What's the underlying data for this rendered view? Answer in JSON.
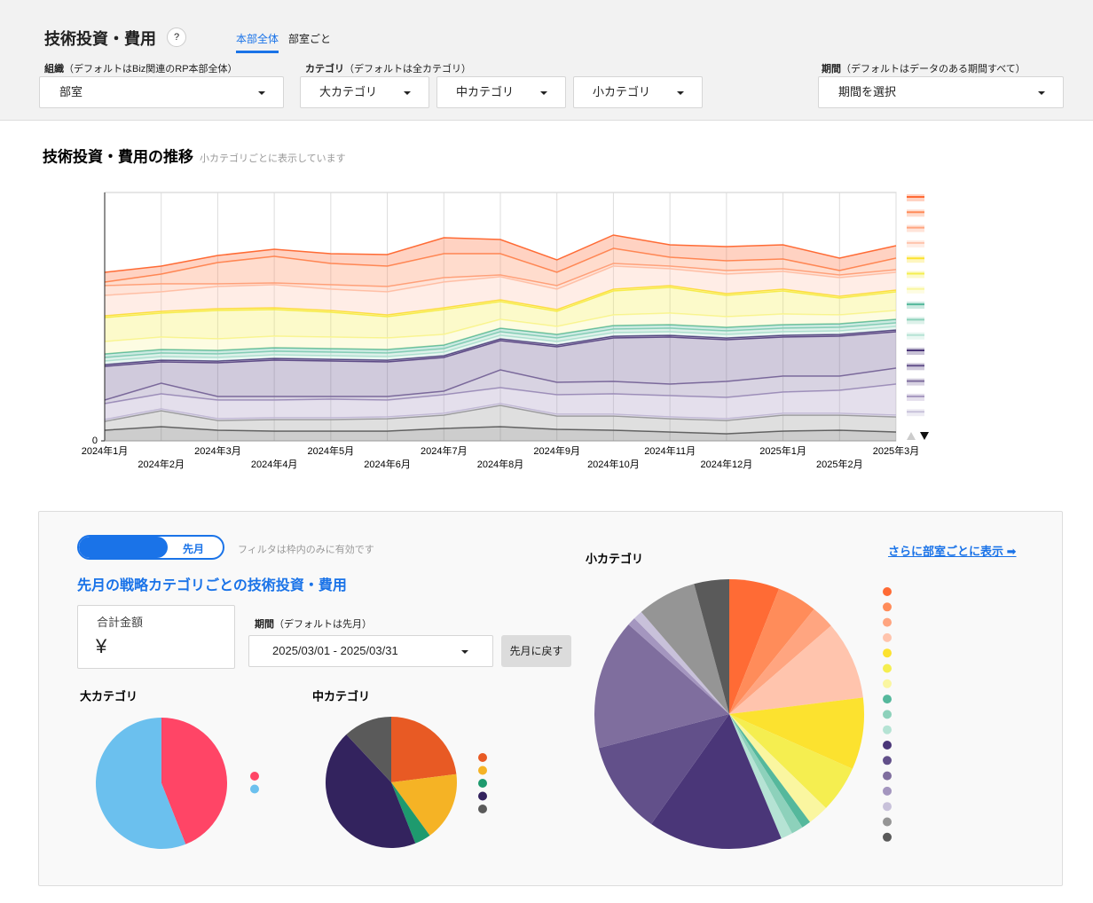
{
  "header": {
    "title": "技術投資・費用",
    "help": "?",
    "tabs": [
      "本部全体",
      "部室ごと"
    ]
  },
  "filters": [
    {
      "label": "組織",
      "note": "（デフォルトはBiz関連のRP本部全体）",
      "options": [
        "部室"
      ]
    },
    {
      "label": "カテゴリ",
      "note": "（デフォルトは全カテゴリ）",
      "options": [
        "大カテゴリ",
        "中カテゴリ",
        "小カテゴリ"
      ]
    },
    {
      "label": "期間",
      "note": "（デフォルトはデータのある期間すべて）",
      "options": [
        "期間を選択"
      ]
    }
  ],
  "panel": {
    "toggle": "先月",
    "note": "フィルタは枠内のみに有効です",
    "title": "先月の戦略カテゴリごとの技術投資・費用",
    "total_label": "合計金額",
    "total_value": "¥",
    "period_label": "期間",
    "period_note": "（デフォルトは先月）",
    "period_value": "2025/03/01 - 2025/03/31",
    "reset_button": "先月に戻す",
    "link": "さらに部室ごとに表示 ➡"
  },
  "chart_data": [
    {
      "type": "area",
      "stacked": true,
      "title": "技術投資・費用の推移",
      "subtitle": "小カテゴリごとに表示しています",
      "categories": [
        "2024年1月",
        "2024年2月",
        "2024年3月",
        "2024年4月",
        "2024年5月",
        "2024年6月",
        "2024年7月",
        "2024年8月",
        "2024年9月",
        "2024年10月",
        "2024年11月",
        "2024年12月",
        "2025年1月",
        "2025年2月",
        "2025年3月"
      ],
      "ylim": [
        0,
        280
      ],
      "yticks": [
        0
      ],
      "grid": true,
      "series": [
        {
          "color": "#ff6b35",
          "values": [
            11,
            9,
            8,
            8,
            11,
            13,
            18,
            16,
            14,
            15,
            14,
            16,
            16,
            14,
            14
          ]
        },
        {
          "color": "#ff8c5a",
          "values": [
            4,
            11,
            24,
            30,
            24,
            23,
            27,
            24,
            15,
            17,
            10,
            11,
            11,
            5,
            13
          ]
        },
        {
          "color": "#ffa580",
          "values": [
            11,
            9,
            3,
            2,
            5,
            6,
            5,
            2,
            4,
            3,
            3,
            4,
            3,
            3,
            3
          ]
        },
        {
          "color": "#ffc4ad",
          "values": [
            23,
            22,
            25,
            26,
            24,
            26,
            29,
            26,
            23,
            26,
            19,
            22,
            20,
            21,
            20
          ]
        },
        {
          "color": "#fce22f",
          "values": [
            2,
            2,
            2,
            2,
            2,
            2,
            2,
            2,
            2,
            2,
            2,
            2,
            2,
            2,
            2
          ]
        },
        {
          "color": "#f5ee50",
          "values": [
            27,
            27,
            32,
            30,
            28,
            24,
            28,
            20,
            17,
            27,
            29,
            24,
            26,
            19,
            21
          ]
        },
        {
          "color": "#faf6a0",
          "values": [
            14,
            14,
            13,
            13,
            13,
            13,
            12,
            10,
            9,
            12,
            13,
            12,
            12,
            10,
            10
          ]
        },
        {
          "color": "#55b89c",
          "values": [
            4,
            4,
            4,
            4,
            4,
            4,
            4,
            4,
            4,
            4,
            4,
            4,
            4,
            4,
            4
          ]
        },
        {
          "color": "#8dd1bb",
          "values": [
            4,
            4,
            4,
            4,
            4,
            4,
            4,
            4,
            4,
            4,
            4,
            4,
            4,
            4,
            4
          ]
        },
        {
          "color": "#b5e3d4",
          "values": [
            4,
            4,
            4,
            4,
            4,
            4,
            4,
            4,
            4,
            4,
            4,
            4,
            4,
            4,
            4
          ]
        },
        {
          "color": "#4a3678",
          "values": [
            2,
            2,
            2,
            2,
            2,
            2,
            2,
            2,
            2,
            2,
            2,
            2,
            2,
            2,
            2
          ]
        },
        {
          "color": "#62508a",
          "values": [
            38,
            24,
            38,
            41,
            40,
            39,
            38,
            33,
            40,
            49,
            53,
            47,
            44,
            45,
            41
          ]
        },
        {
          "color": "#7f6e9e",
          "values": [
            4,
            12,
            4,
            4,
            3,
            4,
            4,
            20,
            14,
            14,
            13,
            18,
            18,
            16,
            18
          ]
        },
        {
          "color": "#a496bf",
          "values": [
            18,
            17,
            21,
            20,
            21,
            19,
            21,
            18,
            22,
            23,
            24,
            24,
            24,
            26,
            35
          ]
        },
        {
          "color": "#c8c1da",
          "values": [
            2,
            2,
            2,
            2,
            2,
            2,
            2,
            2,
            2,
            2,
            2,
            2,
            2,
            2,
            2
          ]
        },
        {
          "color": "#959595",
          "values": [
            10,
            18,
            11,
            13,
            13,
            14,
            15,
            24,
            15,
            16,
            15,
            15,
            18,
            17,
            17
          ]
        },
        {
          "color": "#5a5a5a",
          "values": [
            12,
            16,
            12,
            11,
            11,
            11,
            14,
            16,
            13,
            12,
            10,
            8,
            11,
            12,
            10
          ]
        }
      ]
    },
    {
      "type": "pie",
      "title": "大カテゴリ",
      "values": [
        44,
        56
      ],
      "colors": [
        "#ff4566",
        "#6bc0ee"
      ]
    },
    {
      "type": "pie",
      "title": "中カテゴリ",
      "values": [
        23,
        17,
        4,
        44,
        12
      ],
      "colors": [
        "#e85a24",
        "#f5b325",
        "#1e9a6e",
        "#33235e",
        "#5a5a5a"
      ]
    },
    {
      "type": "pie",
      "title": "小カテゴリ",
      "values": [
        6.0,
        4.8,
        2.8,
        9.4,
        8.6,
        5.6,
        2.5,
        1.1,
        1.4,
        1.4,
        16.1,
        11.1,
        15.6,
        1.0,
        1.1,
        7.1,
        4.2
      ],
      "colors": [
        "#ff6b35",
        "#ff8c5a",
        "#ffa580",
        "#ffc4ad",
        "#fce22f",
        "#f5ee50",
        "#faf6a0",
        "#55b89c",
        "#8dd1bb",
        "#b5e3d4",
        "#4a3678",
        "#62508a",
        "#7f6e9e",
        "#a496bf",
        "#c8c1da",
        "#959595",
        "#5a5a5a"
      ]
    }
  ]
}
